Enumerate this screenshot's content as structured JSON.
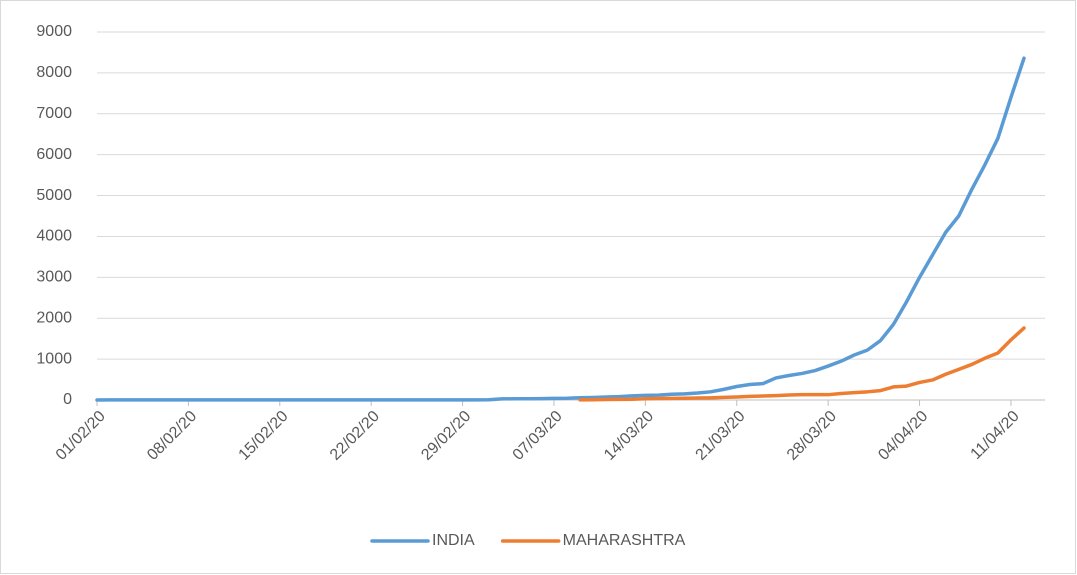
{
  "chart_data": {
    "type": "line",
    "categories": [
      "01/02/20",
      null,
      null,
      null,
      null,
      null,
      null,
      "08/02/20",
      null,
      null,
      null,
      null,
      null,
      null,
      "15/02/20",
      null,
      null,
      null,
      null,
      null,
      null,
      "22/02/20",
      null,
      null,
      null,
      null,
      null,
      null,
      "29/02/20",
      null,
      null,
      null,
      null,
      null,
      null,
      "07/03/20",
      null,
      null,
      null,
      null,
      null,
      null,
      "14/03/20",
      null,
      null,
      null,
      null,
      null,
      null,
      "21/03/20",
      null,
      null,
      null,
      null,
      null,
      null,
      "28/03/20",
      null,
      null,
      null,
      null,
      null,
      null,
      "04/04/20",
      null,
      null,
      null,
      null,
      null,
      null,
      "11/04/20",
      null
    ],
    "series": [
      {
        "name": "INDIA",
        "color": "#5b9bd5",
        "values": [
          1,
          2,
          3,
          3,
          3,
          3,
          3,
          3,
          3,
          3,
          3,
          3,
          3,
          3,
          3,
          3,
          3,
          3,
          3,
          3,
          3,
          3,
          3,
          3,
          3,
          3,
          3,
          3,
          3,
          3,
          5,
          28,
          30,
          31,
          34,
          39,
          43,
          56,
          62,
          73,
          82,
          102,
          113,
          119,
          140,
          150,
          170,
          200,
          260,
          330,
          380,
          400,
          540,
          600,
          650,
          720,
          830,
          950,
          1100,
          1220,
          1450,
          1850,
          2400,
          3000,
          3550,
          4100,
          4500,
          5150,
          5750,
          6400,
          7400,
          8360
        ]
      },
      {
        "name": "MAHARASHTRA",
        "color": "#ed7d31",
        "values": [
          null,
          null,
          null,
          null,
          null,
          null,
          null,
          null,
          null,
          null,
          null,
          null,
          null,
          null,
          null,
          null,
          null,
          null,
          null,
          null,
          null,
          null,
          null,
          null,
          null,
          null,
          null,
          null,
          null,
          null,
          null,
          null,
          null,
          null,
          null,
          null,
          null,
          2,
          5,
          11,
          14,
          17,
          32,
          38,
          41,
          42,
          48,
          52,
          63,
          74,
          89,
          97,
          107,
          122,
          130,
          130,
          130,
          160,
          180,
          200,
          230,
          320,
          340,
          430,
          490,
          630,
          750,
          870,
          1020,
          1150,
          1470,
          1760
        ]
      }
    ],
    "ylim": [
      0,
      9000
    ],
    "yticks": [
      0,
      1000,
      2000,
      3000,
      4000,
      5000,
      6000,
      7000,
      8000,
      9000
    ],
    "grid": true,
    "legend": "bottom"
  }
}
